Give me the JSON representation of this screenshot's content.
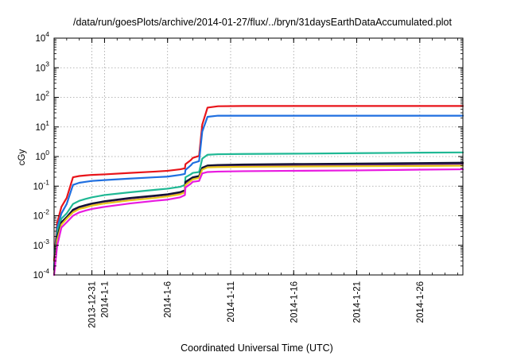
{
  "chart_data": {
    "type": "line",
    "title": "/data/run/goesPlots/archive/2014-01-27/flux/../bryn/31daysEarthDataAccumulated.plot",
    "xlabel": "Coordinated Universal Time (UTC)",
    "ylabel": "cGy",
    "y_scale": "log",
    "ylim": [
      0.0001,
      10000
    ],
    "y_ticks": [
      {
        "value": 0.0001,
        "exp": "-4"
      },
      {
        "value": 0.001,
        "exp": "-3"
      },
      {
        "value": 0.01,
        "exp": "-2"
      },
      {
        "value": 0.1,
        "exp": "-1"
      },
      {
        "value": 1,
        "exp": "0"
      },
      {
        "value": 10,
        "exp": "1"
      },
      {
        "value": 100,
        "exp": "2"
      },
      {
        "value": 1000,
        "exp": "3"
      },
      {
        "value": 10000,
        "exp": "4"
      }
    ],
    "x_unit": "days",
    "xlim": [
      "2013-12-28",
      "2014-01-29T10:00"
    ],
    "x_ticks": [
      {
        "date": "2013-12-31",
        "label": "2013-12-31"
      },
      {
        "date": "2014-01-01",
        "label": "2014-1-1"
      },
      {
        "date": "2014-01-06",
        "label": "2014-1-6"
      },
      {
        "date": "2014-01-11",
        "label": "2014-1-11"
      },
      {
        "date": "2014-01-16",
        "label": "2014-1-16"
      },
      {
        "date": "2014-01-21",
        "label": "2014-1-21"
      },
      {
        "date": "2014-01-26",
        "label": "2014-1-26"
      }
    ],
    "grid": true,
    "x_dates": [
      "2013-12-28",
      "2013-12-28T06:00",
      "2013-12-28T14:00",
      "2013-12-29",
      "2013-12-29T12:00",
      "2013-12-30",
      "2013-12-30T12:00",
      "2013-12-31",
      "2014-01-01",
      "2014-01-03",
      "2014-01-05",
      "2014-01-06",
      "2014-01-07",
      "2014-01-07T09:00",
      "2014-01-07T10:00",
      "2014-01-07T20:00",
      "2014-01-08",
      "2014-01-08T12:00",
      "2014-01-08T18:00",
      "2014-01-09T04:00",
      "2014-01-10",
      "2014-01-12",
      "2014-01-16",
      "2014-01-21",
      "2014-01-26",
      "2014-01-29T10:00"
    ],
    "series": [
      {
        "color": "#e8141a",
        "values": [
          0.0003,
          0.006,
          0.02,
          0.04,
          0.2,
          0.22,
          0.23,
          0.24,
          0.25,
          0.28,
          0.31,
          0.33,
          0.37,
          0.4,
          0.55,
          0.75,
          0.9,
          1.05,
          12,
          45,
          50,
          51,
          51,
          51,
          51,
          51
        ]
      },
      {
        "color": "#1f6fe0",
        "values": [
          0.0002,
          0.004,
          0.012,
          0.025,
          0.11,
          0.13,
          0.14,
          0.15,
          0.16,
          0.18,
          0.2,
          0.21,
          0.24,
          0.26,
          0.35,
          0.5,
          0.6,
          0.7,
          7,
          22,
          24,
          24,
          24,
          24,
          24,
          24
        ]
      },
      {
        "color": "#1fb894",
        "values": [
          0.0002,
          0.003,
          0.008,
          0.012,
          0.025,
          0.032,
          0.037,
          0.042,
          0.05,
          0.062,
          0.075,
          0.082,
          0.095,
          0.11,
          0.2,
          0.25,
          0.28,
          0.3,
          0.85,
          1.15,
          1.2,
          1.22,
          1.25,
          1.3,
          1.35,
          1.38
        ]
      },
      {
        "color": "#6a2a7a",
        "values": [
          0.00015,
          0.002,
          0.006,
          0.009,
          0.015,
          0.019,
          0.022,
          0.025,
          0.03,
          0.038,
          0.046,
          0.051,
          0.06,
          0.07,
          0.13,
          0.17,
          0.19,
          0.21,
          0.4,
          0.47,
          0.48,
          0.49,
          0.5,
          0.52,
          0.55,
          0.57
        ]
      },
      {
        "color": "#111133",
        "values": [
          0.00015,
          0.002,
          0.006,
          0.009,
          0.016,
          0.02,
          0.023,
          0.026,
          0.031,
          0.04,
          0.048,
          0.053,
          0.063,
          0.073,
          0.14,
          0.18,
          0.2,
          0.22,
          0.42,
          0.5,
          0.52,
          0.54,
          0.56,
          0.58,
          0.6,
          0.62
        ]
      },
      {
        "color": "#e8c81a",
        "values": [
          0.0001,
          0.0015,
          0.005,
          0.008,
          0.013,
          0.017,
          0.019,
          0.022,
          0.026,
          0.033,
          0.04,
          0.045,
          0.053,
          0.062,
          0.11,
          0.15,
          0.17,
          0.19,
          0.36,
          0.43,
          0.44,
          0.45,
          0.46,
          0.47,
          0.48,
          0.49
        ]
      },
      {
        "color": "#e81ae0",
        "values": [
          0.0001,
          0.001,
          0.004,
          0.006,
          0.01,
          0.013,
          0.015,
          0.017,
          0.02,
          0.026,
          0.032,
          0.035,
          0.042,
          0.05,
          0.09,
          0.12,
          0.14,
          0.15,
          0.27,
          0.3,
          0.31,
          0.32,
          0.33,
          0.34,
          0.36,
          0.37
        ]
      }
    ]
  }
}
